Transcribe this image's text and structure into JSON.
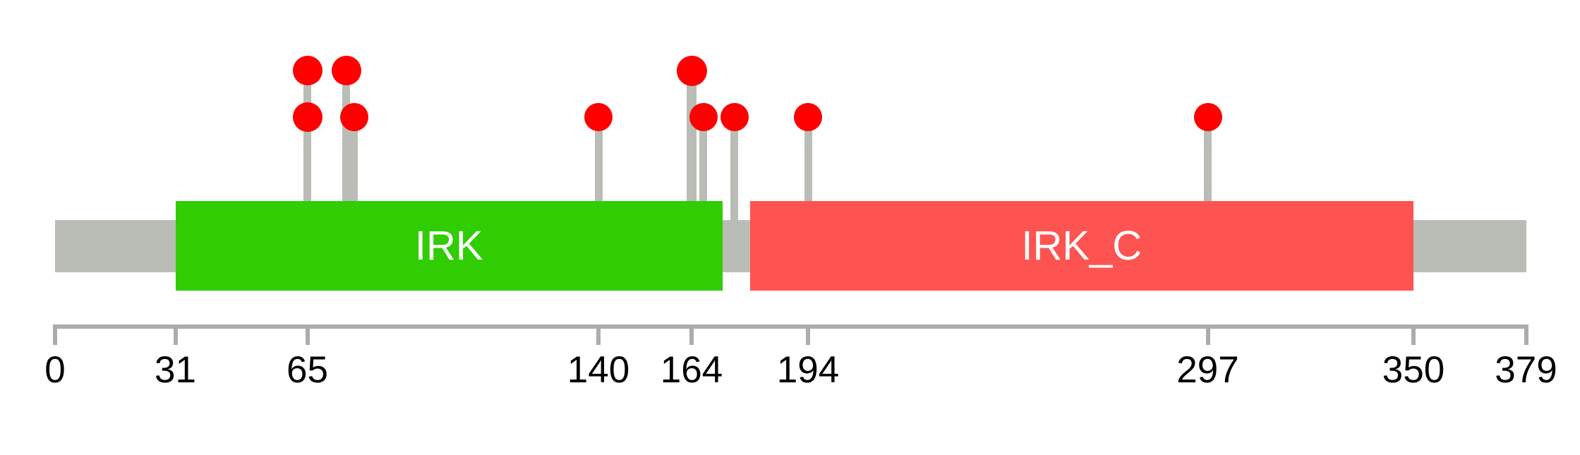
{
  "chart_data": {
    "type": "lollipop",
    "description": "Protein domain mutation lollipop diagram",
    "protein_length": 379,
    "xlim": [
      0,
      379
    ],
    "axis_ticks": [
      0,
      31,
      65,
      140,
      164,
      194,
      297,
      350,
      379
    ],
    "domains": [
      {
        "label": "IRK",
        "start": 31,
        "end": 172,
        "color": "#2fcd02"
      },
      {
        "label": "IRK_C",
        "start": 179,
        "end": 350,
        "color": "#fd5451"
      }
    ],
    "lollipops": [
      {
        "position": 65,
        "circles": [
          "upper",
          "lower"
        ],
        "radius": 21,
        "stem_width": 11,
        "anchored_to": "domain"
      },
      {
        "position": 75,
        "circles": [
          "upper"
        ],
        "radius": 21,
        "stem_width": 11,
        "anchored_to": "domain"
      },
      {
        "position": 77,
        "circles": [
          "lower"
        ],
        "radius": 20,
        "stem_width": 11,
        "anchored_to": "domain"
      },
      {
        "position": 140,
        "circles": [
          "lower"
        ],
        "radius": 20,
        "stem_width": 11,
        "anchored_to": "domain"
      },
      {
        "position": 164,
        "circles": [
          "upper"
        ],
        "radius": 21.5,
        "stem_width": 14,
        "anchored_to": "domain"
      },
      {
        "position": 167,
        "circles": [
          "lower"
        ],
        "radius": 20,
        "stem_width": 11,
        "anchored_to": "domain"
      },
      {
        "position": 175,
        "circles": [
          "lower"
        ],
        "radius": 20,
        "stem_width": 11,
        "anchored_to": "backbone"
      },
      {
        "position": 194,
        "circles": [
          "lower"
        ],
        "radius": 20,
        "stem_width": 11,
        "anchored_to": "domain"
      },
      {
        "position": 297,
        "circles": [
          "lower"
        ],
        "radius": 20,
        "stem_width": 11,
        "anchored_to": "domain"
      }
    ],
    "legend": null,
    "title": "",
    "grid": false
  },
  "colors": {
    "backbone_gray": "#babdb6",
    "stem_gray": "#babdb6",
    "mutation_red": "#fe0000",
    "domain_green": "#2fcd02",
    "domain_red": "#fd5451",
    "axis_gray": "#acacac",
    "label_black": "#000000",
    "domain_label_white": "#ffffff"
  }
}
